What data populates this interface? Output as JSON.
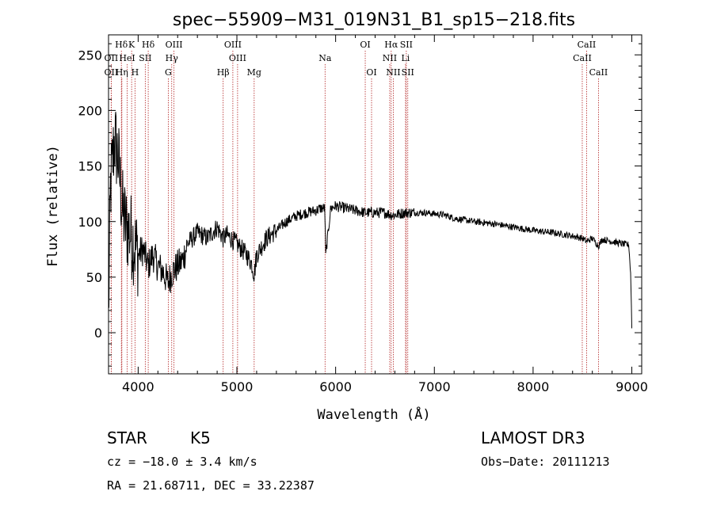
{
  "chart_data": {
    "type": "line",
    "title": "spec−55909−M31_019N31_B1_sp15−218.fits",
    "xlabel": "Wavelength (Å)",
    "ylabel": "Flux (relative)",
    "xlim": [
      3700,
      9100
    ],
    "ylim": [
      -37,
      268
    ],
    "xticks": [
      4000,
      5000,
      6000,
      7000,
      8000,
      9000
    ],
    "yticks": [
      0,
      50,
      100,
      150,
      200,
      250
    ],
    "spectrum_anchors": {
      "x": [
        3700,
        3720,
        3760,
        3800,
        3840,
        3880,
        3920,
        3960,
        4000,
        4050,
        4100,
        4150,
        4200,
        4250,
        4300,
        4350,
        4400,
        4450,
        4500,
        4600,
        4700,
        4800,
        4861,
        4900,
        5000,
        5100,
        5150,
        5175,
        5200,
        5300,
        5400,
        5500,
        5600,
        5700,
        5800,
        5850,
        5890,
        5900,
        5950,
        6000,
        6100,
        6200,
        6300,
        6400,
        6500,
        6563,
        6600,
        6700,
        6800,
        6900,
        7000,
        7100,
        7200,
        7400,
        7600,
        7800,
        8000,
        8200,
        8400,
        8498,
        8542,
        8600,
        8662,
        8700,
        8800,
        8900,
        8970,
        8990,
        9000
      ],
      "y": [
        15,
        130,
        175,
        155,
        110,
        95,
        90,
        80,
        70,
        75,
        60,
        70,
        60,
        55,
        45,
        55,
        60,
        65,
        80,
        90,
        85,
        95,
        85,
        88,
        80,
        70,
        62,
        52,
        70,
        85,
        92,
        100,
        105,
        108,
        110,
        112,
        112,
        70,
        112,
        114,
        112,
        110,
        108,
        108,
        108,
        106,
        106,
        108,
        108,
        108,
        107,
        106,
        103,
        100,
        98,
        95,
        92,
        90,
        87,
        85,
        82,
        85,
        78,
        84,
        82,
        80,
        79,
        50,
        5
      ],
      "noise": [
        {
          "range": [
            3700,
            4000
          ],
          "amplitude": 40
        },
        {
          "range": [
            4000,
            4500
          ],
          "amplitude": 15
        },
        {
          "range": [
            4500,
            5400
          ],
          "amplitude": 9
        },
        {
          "range": [
            5400,
            6800
          ],
          "amplitude": 5
        },
        {
          "range": [
            6800,
            9000
          ],
          "amplitude": 3
        }
      ]
    },
    "spectral_lines": [
      {
        "label": "Hδ",
        "x": 3830,
        "row": 0
      },
      {
        "label": "K",
        "x": 3934,
        "row": 0
      },
      {
        "label": "Hδ",
        "x": 4102,
        "row": 0
      },
      {
        "label": "OIII",
        "x": 4363,
        "row": 0
      },
      {
        "label": "OIII",
        "x": 4959,
        "row": 0
      },
      {
        "label": "OI",
        "x": 6300,
        "row": 0
      },
      {
        "label": "Hα",
        "x": 6563,
        "row": 0
      },
      {
        "label": "SII",
        "x": 6716,
        "row": 0
      },
      {
        "label": "CaII",
        "x": 8542,
        "row": 0
      },
      {
        "label": "OII",
        "x": 3727,
        "row": 1
      },
      {
        "label": "HeI",
        "x": 3889,
        "row": 1
      },
      {
        "label": "SII",
        "x": 4072,
        "row": 1
      },
      {
        "label": "Hγ",
        "x": 4340,
        "row": 1
      },
      {
        "label": "OIII",
        "x": 5007,
        "row": 1
      },
      {
        "label": "Na",
        "x": 5893,
        "row": 1
      },
      {
        "label": "NII",
        "x": 6548,
        "row": 1
      },
      {
        "label": "Li",
        "x": 6708,
        "row": 1
      },
      {
        "label": "CaII",
        "x": 8498,
        "row": 1
      },
      {
        "label": "OII",
        "x": 3727,
        "row": 2
      },
      {
        "label": "Hη",
        "x": 3835,
        "row": 2
      },
      {
        "label": "H",
        "x": 3968,
        "row": 2
      },
      {
        "label": "G",
        "x": 4305,
        "row": 2
      },
      {
        "label": "Hβ",
        "x": 4861,
        "row": 2
      },
      {
        "label": "Mg",
        "x": 5175,
        "row": 2
      },
      {
        "label": "OI",
        "x": 6364,
        "row": 2
      },
      {
        "label": "NII",
        "x": 6584,
        "row": 2
      },
      {
        "label": "SII",
        "x": 6731,
        "row": 2
      },
      {
        "label": "CaII",
        "x": 8662,
        "row": 2
      }
    ]
  },
  "info": {
    "object_class": "STAR",
    "subclass": "K5",
    "survey": "LAMOST DR3",
    "cz": "cz = −18.0 ± 3.4 km/s",
    "obs_date": "Obs−Date: 20111213",
    "coords": "RA =  21.68711, DEC =  33.22387"
  },
  "colors": {
    "spectrum": "#000000",
    "line_marker": "#b22222",
    "axes": "#000000"
  }
}
